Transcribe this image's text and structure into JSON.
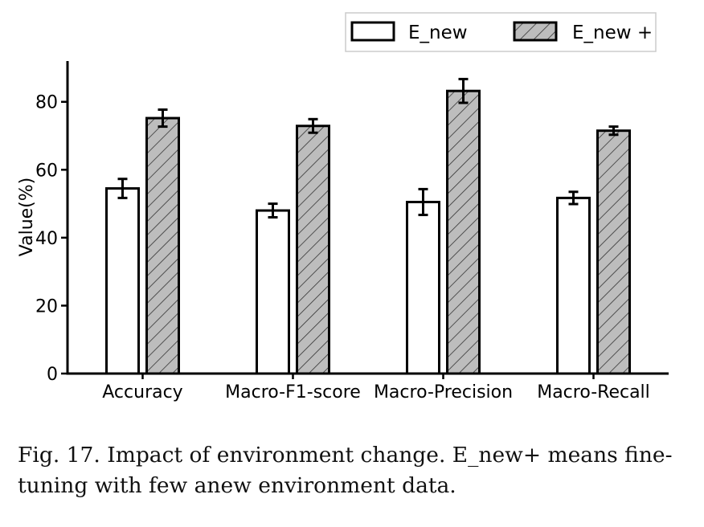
{
  "chart_data": {
    "type": "bar",
    "categories": [
      "Accuracy",
      "Macro-F1-score",
      "Macro-Precision",
      "Macro-Recall"
    ],
    "series": [
      {
        "name": "E_new",
        "values": [
          54.5,
          48.0,
          50.5,
          51.7
        ],
        "errors": [
          2.8,
          2.0,
          3.8,
          1.8
        ],
        "color": "#ffffff",
        "hatch": false
      },
      {
        "name": "E_new +",
        "values": [
          75.2,
          72.9,
          83.2,
          71.5
        ],
        "errors": [
          2.5,
          2.0,
          3.5,
          1.2
        ],
        "color": "#bdbdbd",
        "hatch": true
      }
    ],
    "title": "",
    "xlabel": "",
    "ylabel": "Value(%)",
    "ylim": [
      0,
      92
    ],
    "yticks": [
      0,
      20,
      40,
      60,
      80
    ],
    "grid": false,
    "legend": "top-right"
  },
  "caption": "Fig. 17.  Impact of environment change. E_new+ means fine-tuning with few anew environment data."
}
